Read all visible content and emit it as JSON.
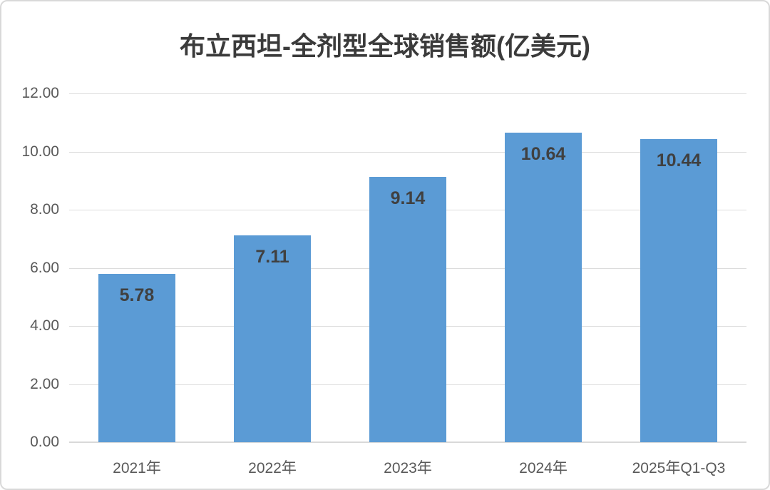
{
  "chart_data": {
    "type": "bar",
    "title": "布立西坦-全剂型全球销售额(亿美元)",
    "categories": [
      "2021年",
      "2022年",
      "2023年",
      "2024年",
      "2025年Q1-Q3"
    ],
    "values": [
      5.78,
      7.11,
      9.14,
      10.64,
      10.44
    ],
    "value_labels": [
      "5.78",
      "7.11",
      "9.14",
      "10.64",
      "10.44"
    ],
    "xlabel": "",
    "ylabel": "",
    "ylim": [
      0,
      12
    ],
    "y_ticks": [
      {
        "value": 0,
        "label": "0.00"
      },
      {
        "value": 2,
        "label": "2.00"
      },
      {
        "value": 4,
        "label": "4.00"
      },
      {
        "value": 6,
        "label": "6.00"
      },
      {
        "value": 8,
        "label": "8.00"
      },
      {
        "value": 10,
        "label": "10.00"
      },
      {
        "value": 12,
        "label": "12.00"
      }
    ],
    "grid": "horizontal",
    "legend": "none",
    "colors": {
      "bar": "#5b9bd5",
      "value_label": "#404040",
      "axis_text": "#595959",
      "title_text": "#3b3b3b",
      "gridline": "#dcdcdc",
      "frame_border": "#d9d9d9",
      "background": "#ffffff"
    }
  }
}
